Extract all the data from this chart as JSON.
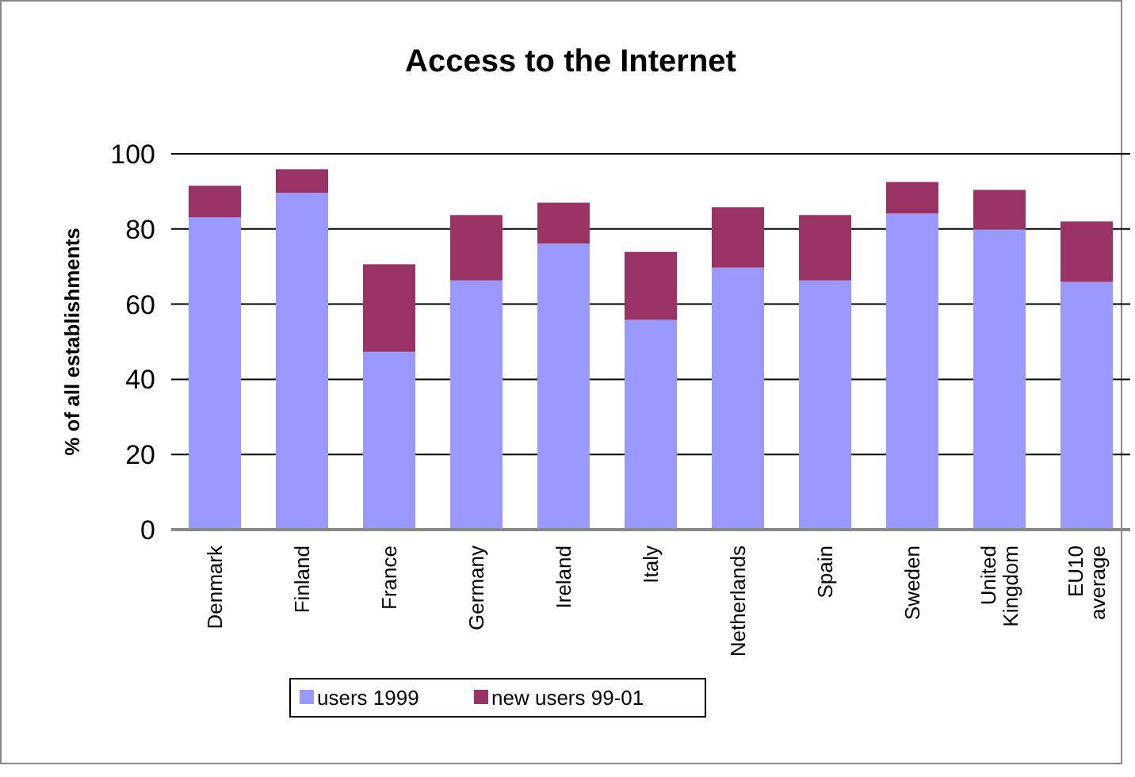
{
  "chart_data": {
    "type": "bar",
    "title": "Access to the Internet",
    "ylabel": "% of all establishments",
    "categories": [
      "Denmark",
      "Finland",
      "France",
      "Germany",
      "Ireland",
      "Italy",
      "Netherlands",
      "Spain",
      "Sweden",
      "United Kingdom",
      "EU10 average"
    ],
    "series": [
      {
        "name": "users 1999",
        "color": "#9999ff",
        "values": [
          83.1,
          89.6,
          47.3,
          66.3,
          76.1,
          55.8,
          69.7,
          66.3,
          84.1,
          79.9,
          65.9
        ]
      },
      {
        "name": "new users 99-01",
        "color": "#993366",
        "values": [
          8.4,
          6.3,
          23.3,
          17.4,
          10.9,
          18.1,
          16.1,
          17.4,
          8.4,
          10.5,
          16.1
        ]
      }
    ],
    "stacked": true,
    "ylim": [
      0,
      100
    ],
    "yticks": [
      0,
      20,
      40,
      60,
      80,
      100
    ],
    "grid": "y",
    "legend": "bottom"
  }
}
